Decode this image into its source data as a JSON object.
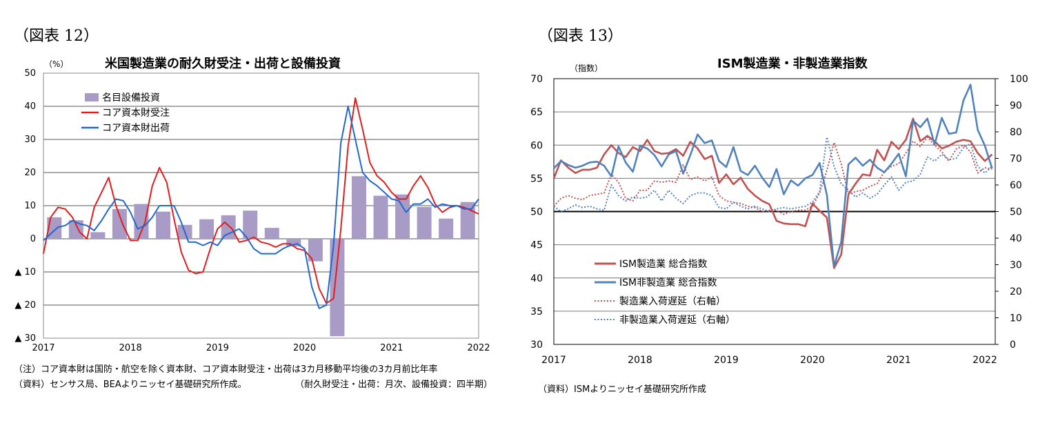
{
  "left": {
    "figure_label": "（図表 12）",
    "notes": {
      "note1": "（注）コア資本財は国防・航空を除く資本財、コア資本財受注・出荷は3カ月移動平均後の3カ月前比年率",
      "source": "（資料）センサス局、BEAよりニッセイ基礎研究所作成。",
      "frequency": "（耐久財受注・出荷：月次、設備投資：四半期）"
    }
  },
  "right": {
    "figure_label": "（図表 13）",
    "notes": {
      "source": "（資料）ISMよりニッセイ基礎研究所作成"
    }
  },
  "colors": {
    "bars": "#a89bc6",
    "orders": "#e31b1b",
    "shipments": "#1f67d1",
    "ism_mfg": "#c0504d",
    "ism_nonmfg": "#4f81bd",
    "mfg_delivery": "#c0504d",
    "nonmfg_delivery": "#4f81bd"
  },
  "chart_data": [
    {
      "type": "bar+line",
      "title": "米国製造業の耐久財受注・出荷と設備投資",
      "yunit": "（%）",
      "ylim": [
        -30,
        50
      ],
      "yticks": [
        {
          "v": 50,
          "label": "50"
        },
        {
          "v": 40,
          "label": "40"
        },
        {
          "v": 30,
          "label": "30"
        },
        {
          "v": 20,
          "label": "20"
        },
        {
          "v": 10,
          "label": "10"
        },
        {
          "v": 0,
          "label": "0"
        },
        {
          "v": -10,
          "label": "▲ 10"
        },
        {
          "v": -20,
          "label": "▲ 20"
        },
        {
          "v": -30,
          "label": "▲ 30"
        }
      ],
      "xlabels": [
        "2017",
        "2018",
        "2019",
        "2020",
        "2021",
        "2022"
      ],
      "xlim": [
        2017.0,
        2022.0
      ],
      "legend": [
        "名目設備投資",
        "コア資本財受注",
        "コア資本財出荷"
      ],
      "bars": {
        "name": "名目設備投資",
        "quarters": [
          2017.125,
          2017.375,
          2017.625,
          2017.875,
          2018.125,
          2018.375,
          2018.625,
          2018.875,
          2019.125,
          2019.375,
          2019.625,
          2019.875,
          2020.125,
          2020.375,
          2020.625,
          2020.875,
          2021.125,
          2021.375,
          2021.625,
          2021.875
        ],
        "values": [
          6.5,
          5.6,
          2.0,
          9.0,
          10.5,
          8.2,
          4.2,
          5.9,
          7.1,
          8.5,
          3.3,
          -2.3,
          -6.8,
          -29.4,
          18.9,
          13.0,
          13.4,
          9.6,
          6.1,
          11.1
        ]
      },
      "series": [
        {
          "name": "コア資本財受注",
          "x": [
            2017.0,
            2017.083,
            2017.167,
            2017.25,
            2017.333,
            2017.417,
            2017.5,
            2017.583,
            2017.667,
            2017.75,
            2017.833,
            2017.917,
            2018.0,
            2018.083,
            2018.167,
            2018.25,
            2018.333,
            2018.417,
            2018.5,
            2018.583,
            2018.667,
            2018.75,
            2018.833,
            2018.917,
            2019.0,
            2019.083,
            2019.167,
            2019.25,
            2019.333,
            2019.417,
            2019.5,
            2019.583,
            2019.667,
            2019.75,
            2019.833,
            2019.917,
            2020.0,
            2020.083,
            2020.167,
            2020.25,
            2020.333,
            2020.417,
            2020.5,
            2020.583,
            2020.667,
            2020.75,
            2020.833,
            2020.917,
            2021.0,
            2021.083,
            2021.167,
            2021.25,
            2021.333,
            2021.417,
            2021.5,
            2021.583,
            2021.667,
            2021.75,
            2021.833,
            2021.917,
            2022.0
          ],
          "values": [
            -4.5,
            6.5,
            9.5,
            9.0,
            6.5,
            2.0,
            0.0,
            9.5,
            14.0,
            18.5,
            10.0,
            4.0,
            -0.5,
            -0.5,
            5.0,
            16.0,
            21.5,
            17.0,
            6.0,
            -4.0,
            -9.5,
            -10.5,
            -10.0,
            -3.0,
            3.0,
            5.0,
            3.0,
            -1.0,
            -0.5,
            0.5,
            -1.0,
            -1.5,
            -2.5,
            -1.5,
            -1.5,
            -3.0,
            -3.5,
            -6.0,
            -15.0,
            -19.5,
            -18.0,
            3.0,
            28.0,
            42.5,
            33.0,
            23.0,
            19.0,
            17.0,
            14.0,
            12.0,
            12.0,
            16.0,
            19.0,
            15.5,
            10.5,
            8.0,
            9.5,
            10.0,
            9.5,
            8.5,
            7.5
          ]
        },
        {
          "name": "コア資本財出荷",
          "x": [
            2017.0,
            2017.083,
            2017.167,
            2017.25,
            2017.333,
            2017.417,
            2017.5,
            2017.583,
            2017.667,
            2017.75,
            2017.833,
            2017.917,
            2018.0,
            2018.083,
            2018.167,
            2018.25,
            2018.333,
            2018.417,
            2018.5,
            2018.583,
            2018.667,
            2018.75,
            2018.833,
            2018.917,
            2019.0,
            2019.083,
            2019.167,
            2019.25,
            2019.333,
            2019.417,
            2019.5,
            2019.583,
            2019.667,
            2019.75,
            2019.833,
            2019.917,
            2020.0,
            2020.083,
            2020.167,
            2020.25,
            2020.333,
            2020.417,
            2020.5,
            2020.583,
            2020.667,
            2020.75,
            2020.833,
            2020.917,
            2021.0,
            2021.083,
            2021.167,
            2021.25,
            2021.333,
            2021.417,
            2021.5,
            2021.583,
            2021.667,
            2021.75,
            2021.833,
            2021.917,
            2022.0
          ],
          "values": [
            -0.5,
            1.5,
            3.5,
            4.0,
            5.5,
            4.5,
            4.0,
            2.5,
            5.5,
            9.0,
            12.0,
            11.5,
            8.0,
            3.0,
            4.0,
            6.5,
            10.0,
            10.0,
            10.0,
            5.0,
            -1.0,
            -1.0,
            -2.0,
            -1.0,
            -2.0,
            1.0,
            2.0,
            3.0,
            0.5,
            -3.0,
            -4.5,
            -4.5,
            -4.5,
            -3.0,
            -2.0,
            -1.5,
            -3.0,
            -14.5,
            -21.0,
            -20.0,
            -2.0,
            29.0,
            40.0,
            30.0,
            20.0,
            17.5,
            16.0,
            14.0,
            12.0,
            11.5,
            8.0,
            10.5,
            10.5,
            12.0,
            9.5,
            10.5,
            10.0,
            10.0,
            9.0,
            9.0,
            12.0
          ]
        }
      ]
    },
    {
      "type": "line",
      "title": "ISM製造業・非製造業指数",
      "yunit": "（指数）",
      "ylim": [
        30,
        70
      ],
      "yticks": [
        30,
        35,
        40,
        45,
        50,
        55,
        60,
        65,
        70
      ],
      "y2lim": [
        0,
        100
      ],
      "y2ticks": [
        0,
        10,
        20,
        30,
        40,
        50,
        60,
        70,
        80,
        90,
        100
      ],
      "reference_line": 50,
      "xlabels": [
        "2017",
        "2018",
        "2019",
        "2020",
        "2021",
        "2022"
      ],
      "xlim": [
        2017.0,
        2022.0
      ],
      "legend": [
        "ISM製造業 総合指数",
        "ISM非製造業 総合指数",
        "製造業入荷遅延（右軸）",
        "非製造業入荷遅延（右軸）"
      ],
      "series": [
        {
          "name": "ISM製造業 総合指数",
          "axis": "left",
          "style": "solid",
          "x": [
            2017.0,
            2017.083,
            2017.167,
            2017.25,
            2017.333,
            2017.417,
            2017.5,
            2017.583,
            2017.667,
            2017.75,
            2017.833,
            2017.917,
            2018.0,
            2018.083,
            2018.167,
            2018.25,
            2018.333,
            2018.417,
            2018.5,
            2018.583,
            2018.667,
            2018.75,
            2018.833,
            2018.917,
            2019.0,
            2019.083,
            2019.167,
            2019.25,
            2019.333,
            2019.417,
            2019.5,
            2019.583,
            2019.667,
            2019.75,
            2019.833,
            2019.917,
            2020.0,
            2020.083,
            2020.167,
            2020.25,
            2020.333,
            2020.417,
            2020.5,
            2020.583,
            2020.667,
            2020.75,
            2020.833,
            2020.917,
            2021.0,
            2021.083,
            2021.167,
            2021.25,
            2021.333,
            2021.417,
            2021.5,
            2021.583,
            2021.667,
            2021.75,
            2021.833,
            2021.917,
            2022.0,
            2022.083
          ],
          "values": [
            55.0,
            57.7,
            56.6,
            55.8,
            56.3,
            56.3,
            56.6,
            58.6,
            60.0,
            58.8,
            58.2,
            59.7,
            59.1,
            60.8,
            59.1,
            58.7,
            58.8,
            59.4,
            58.4,
            60.5,
            59.5,
            57.9,
            58.4,
            54.3,
            55.6,
            54.1,
            55.1,
            53.4,
            52.4,
            51.6,
            51.1,
            48.6,
            48.2,
            48.1,
            48.1,
            47.8,
            51.2,
            50.1,
            49.1,
            41.5,
            43.5,
            52.6,
            54.2,
            55.6,
            55.4,
            59.3,
            57.7,
            60.5,
            59.4,
            60.8,
            64.0,
            60.6,
            61.4,
            60.6,
            59.5,
            59.9,
            60.5,
            60.8,
            60.6,
            58.8,
            57.6,
            58.6
          ]
        },
        {
          "name": "ISM非製造業 総合指数",
          "axis": "left",
          "style": "solid",
          "x": [
            2017.0,
            2017.083,
            2017.167,
            2017.25,
            2017.333,
            2017.417,
            2017.5,
            2017.583,
            2017.667,
            2017.75,
            2017.833,
            2017.917,
            2018.0,
            2018.083,
            2018.167,
            2018.25,
            2018.333,
            2018.417,
            2018.5,
            2018.583,
            2018.667,
            2018.75,
            2018.833,
            2018.917,
            2019.0,
            2019.083,
            2019.167,
            2019.25,
            2019.333,
            2019.417,
            2019.5,
            2019.583,
            2019.667,
            2019.75,
            2019.833,
            2019.917,
            2020.0,
            2020.083,
            2020.167,
            2020.25,
            2020.333,
            2020.417,
            2020.5,
            2020.583,
            2020.667,
            2020.75,
            2020.833,
            2020.917,
            2021.0,
            2021.083,
            2021.167,
            2021.25,
            2021.333,
            2021.417,
            2021.5,
            2021.583,
            2021.667,
            2021.75,
            2021.833,
            2021.917,
            2022.0,
            2022.083
          ],
          "values": [
            56.5,
            57.6,
            57.0,
            56.6,
            56.9,
            57.4,
            57.5,
            56.9,
            55.3,
            59.8,
            57.4,
            56.0,
            59.9,
            59.5,
            58.5,
            56.8,
            58.6,
            59.1,
            55.7,
            58.5,
            61.6,
            60.3,
            60.7,
            57.6,
            56.7,
            59.7,
            56.1,
            55.5,
            56.9,
            55.1,
            53.7,
            56.4,
            52.6,
            54.7,
            53.9,
            55.0,
            55.5,
            57.3,
            52.5,
            41.8,
            45.4,
            57.1,
            58.1,
            56.9,
            57.8,
            56.6,
            55.9,
            57.2,
            58.7,
            55.3,
            63.7,
            62.7,
            64.0,
            60.1,
            64.1,
            61.7,
            61.9,
            66.7,
            69.1,
            62.3,
            59.9,
            56.5
          ]
        },
        {
          "name": "製造業入荷遅延（右軸）",
          "axis": "right",
          "style": "dotted",
          "x": [
            2017.0,
            2017.083,
            2017.167,
            2017.25,
            2017.333,
            2017.417,
            2017.5,
            2017.583,
            2017.667,
            2017.75,
            2017.833,
            2017.917,
            2018.0,
            2018.083,
            2018.167,
            2018.25,
            2018.333,
            2018.417,
            2018.5,
            2018.583,
            2018.667,
            2018.75,
            2018.833,
            2018.917,
            2019.0,
            2019.083,
            2019.167,
            2019.25,
            2019.333,
            2019.417,
            2019.5,
            2019.583,
            2019.667,
            2019.75,
            2019.833,
            2019.917,
            2020.0,
            2020.083,
            2020.167,
            2020.25,
            2020.333,
            2020.417,
            2020.5,
            2020.583,
            2020.667,
            2020.75,
            2020.833,
            2020.917,
            2021.0,
            2021.083,
            2021.167,
            2021.25,
            2021.333,
            2021.417,
            2021.5,
            2021.583,
            2021.667,
            2021.75,
            2021.833,
            2021.917,
            2022.0,
            2022.083
          ],
          "values": [
            52.0,
            55.0,
            56.0,
            55.0,
            54.5,
            56.0,
            56.5,
            57.0,
            64.0,
            61.0,
            55.0,
            54.0,
            58.0,
            58.0,
            61.5,
            61.0,
            61.5,
            61.0,
            67.5,
            62.0,
            63.0,
            61.5,
            63.0,
            56.0,
            54.0,
            53.5,
            53.0,
            52.0,
            51.5,
            50.0,
            50.5,
            50.5,
            49.0,
            50.0,
            50.5,
            50.5,
            52.0,
            57.0,
            65.5,
            76.0,
            68.0,
            56.5,
            57.5,
            58.0,
            59.5,
            60.5,
            65.0,
            67.0,
            68.0,
            72.0,
            76.5,
            74.5,
            78.0,
            75.0,
            72.5,
            69.0,
            73.5,
            75.0,
            72.5,
            64.5,
            66.5,
            66.0
          ]
        },
        {
          "name": "非製造業入荷遅延（右軸）",
          "axis": "right",
          "style": "dotted",
          "x": [
            2017.0,
            2017.083,
            2017.167,
            2017.25,
            2017.333,
            2017.417,
            2017.5,
            2017.583,
            2017.667,
            2017.75,
            2017.833,
            2017.917,
            2018.0,
            2018.083,
            2018.167,
            2018.25,
            2018.333,
            2018.417,
            2018.5,
            2018.583,
            2018.667,
            2018.75,
            2018.833,
            2018.917,
            2019.0,
            2019.083,
            2019.167,
            2019.25,
            2019.333,
            2019.417,
            2019.5,
            2019.583,
            2019.667,
            2019.75,
            2019.833,
            2019.917,
            2020.0,
            2020.083,
            2020.167,
            2020.25,
            2020.333,
            2020.417,
            2020.5,
            2020.583,
            2020.667,
            2020.75,
            2020.833,
            2020.917,
            2021.0,
            2021.083,
            2021.167,
            2021.25,
            2021.333,
            2021.417,
            2021.5,
            2021.583,
            2021.667,
            2021.75,
            2021.833,
            2021.917,
            2022.0,
            2022.083
          ],
          "values": [
            52.0,
            50.0,
            51.0,
            52.5,
            51.5,
            52.0,
            51.0,
            50.5,
            60.0,
            56.0,
            54.0,
            55.5,
            55.0,
            55.5,
            58.0,
            54.0,
            58.0,
            55.0,
            53.0,
            56.0,
            57.0,
            57.0,
            56.0,
            51.5,
            51.0,
            53.5,
            52.0,
            51.0,
            52.0,
            51.0,
            50.0,
            51.0,
            51.5,
            51.0,
            51.5,
            52.0,
            53.5,
            57.5,
            78.0,
            67.0,
            60.5,
            58.0,
            55.5,
            57.0,
            55.0,
            56.5,
            60.0,
            63.0,
            58.0,
            61.0,
            61.5,
            64.0,
            70.5,
            69.0,
            71.5,
            69.5,
            70.0,
            74.0,
            75.5,
            67.0,
            64.5,
            67.0
          ]
        }
      ]
    }
  ]
}
